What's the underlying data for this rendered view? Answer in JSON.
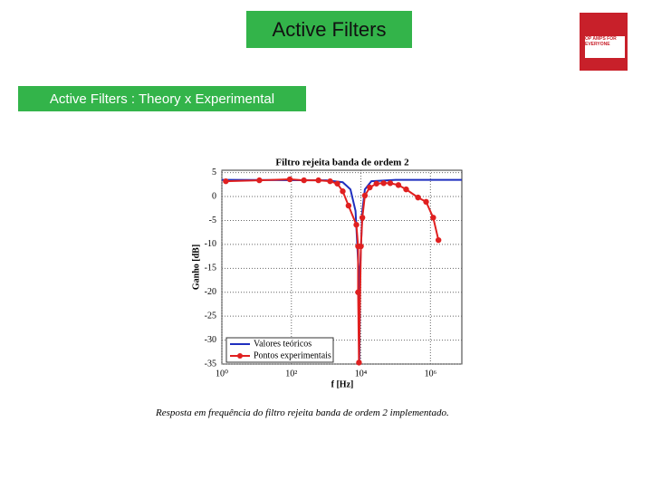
{
  "slide": {
    "title": "Active Filters",
    "subtitle": "Active Filters : Theory x Experimental",
    "caption": "Resposta em frequência do filtro rejeita banda de ordem 2 implementado."
  },
  "book": {
    "title": "OP AMPS FOR EVERYONE"
  },
  "chart_data": {
    "type": "line",
    "title": "Filtro rejeita  banda de ordem 2",
    "x_label": "f [Hz]",
    "y_label": "Ganho [dB]",
    "xscale": "log",
    "xlim": [
      1,
      8000000
    ],
    "xticks": [
      {
        "value": 1,
        "label": "10⁰"
      },
      {
        "value": 100,
        "label": "10²"
      },
      {
        "value": 10000,
        "label": "10⁴"
      },
      {
        "value": 1000000,
        "label": "10⁶"
      }
    ],
    "ylim": [
      -35,
      5.5
    ],
    "yticks": [
      5,
      0,
      -5,
      -10,
      -15,
      -20,
      -25,
      -30,
      -35
    ],
    "grid": true,
    "legend": "lower left",
    "series": [
      {
        "name": "Valores teóricos",
        "color": "#1f2fbf",
        "marker": "none",
        "x": [
          1,
          1000,
          3000,
          5000,
          7000,
          8500,
          9000,
          9500,
          11000,
          13000,
          20000,
          100000,
          8000000
        ],
        "values": [
          3.5,
          3.4,
          3,
          1.5,
          -3,
          -15,
          -35,
          -15,
          -3,
          1.5,
          3.2,
          3.5,
          3.5
        ]
      },
      {
        "name": "Pontos experimentais",
        "color": "#e02020",
        "marker": "circle",
        "x": [
          1.3,
          12,
          90,
          230,
          600,
          1300,
          2100,
          3000,
          4400,
          7400,
          8300,
          8300,
          8800,
          10000,
          11000,
          13000,
          18000,
          28000,
          45000,
          70000,
          120000,
          200000,
          440000,
          750000,
          1200000,
          1700000
        ],
        "values": [
          3.2,
          3.4,
          3.6,
          3.4,
          3.4,
          3.2,
          2.7,
          1.1,
          -1.9,
          -5.9,
          -10.4,
          -20,
          -34.7,
          -10.4,
          -4.4,
          0.2,
          1.9,
          2.7,
          2.8,
          2.8,
          2.4,
          1.5,
          -0.2,
          -1.1,
          -4.4,
          -9.1
        ]
      }
    ]
  }
}
